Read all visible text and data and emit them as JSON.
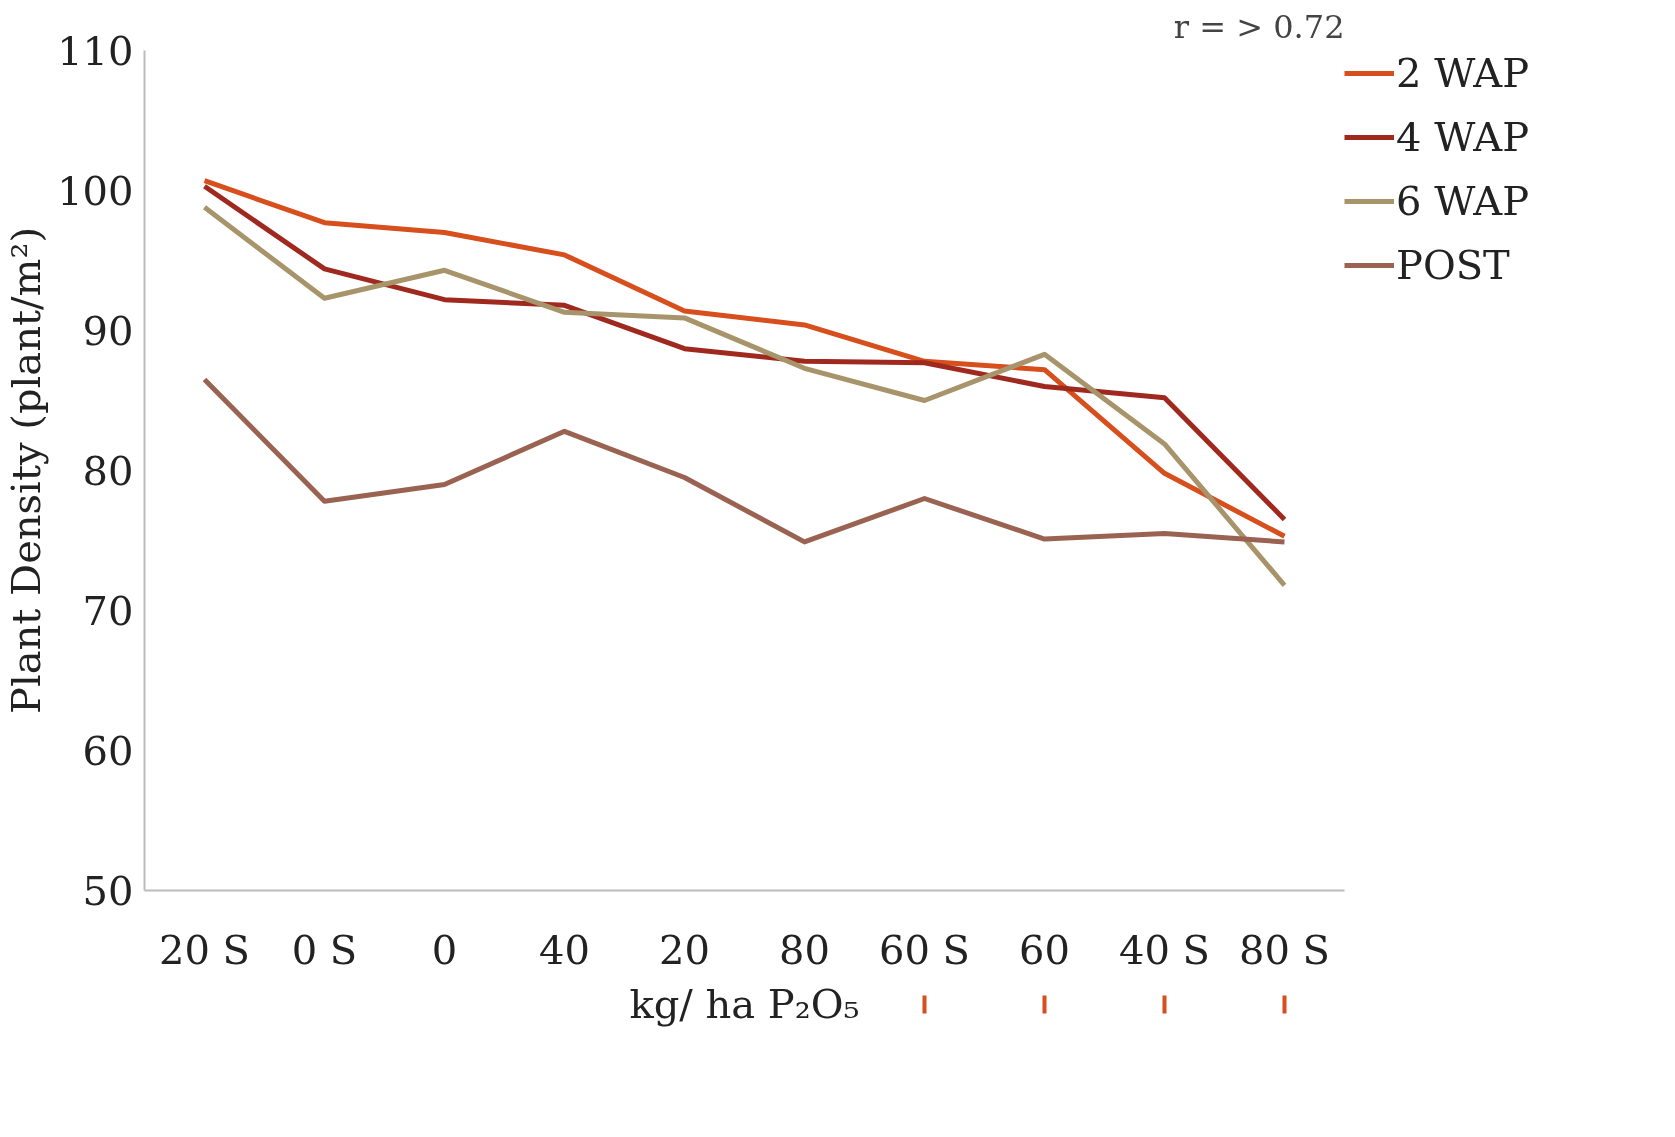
{
  "chart_data": {
    "type": "line",
    "categories": [
      "20 S",
      "0 S",
      "0",
      "40",
      "20",
      "80",
      "60 S",
      "60",
      "40 S",
      "80 S"
    ],
    "series": [
      {
        "name": "2 WAP",
        "color": "#d64f1c",
        "values": [
          100.7,
          97.7,
          97.0,
          95.4,
          91.4,
          90.4,
          87.8,
          87.2,
          79.8,
          75.3
        ]
      },
      {
        "name": "4 WAP",
        "color": "#a0291f",
        "values": [
          100.3,
          94.4,
          92.2,
          91.8,
          88.7,
          87.8,
          87.7,
          86.0,
          85.2,
          76.5
        ]
      },
      {
        "name": "6 WAP",
        "color": "#a8946a",
        "values": [
          98.8,
          92.3,
          94.3,
          91.3,
          90.9,
          87.3,
          85.0,
          88.3,
          81.9,
          71.8
        ]
      },
      {
        "name": "POST",
        "color": "#9a6251",
        "values": [
          86.5,
          77.8,
          79.0,
          82.8,
          79.5,
          74.9,
          78.0,
          75.1,
          75.5,
          74.9
        ]
      }
    ],
    "xlabel": "kg/ ha P₂O₅",
    "ylabel": "Plant Density (plant/m²)",
    "ylim": [
      50,
      110
    ],
    "yticks": [
      50,
      60,
      70,
      80,
      90,
      100,
      110
    ],
    "annotations": [
      "r = > 0.72"
    ],
    "legend": "right",
    "grid": false,
    "marker": "none",
    "line_style": "solid"
  }
}
